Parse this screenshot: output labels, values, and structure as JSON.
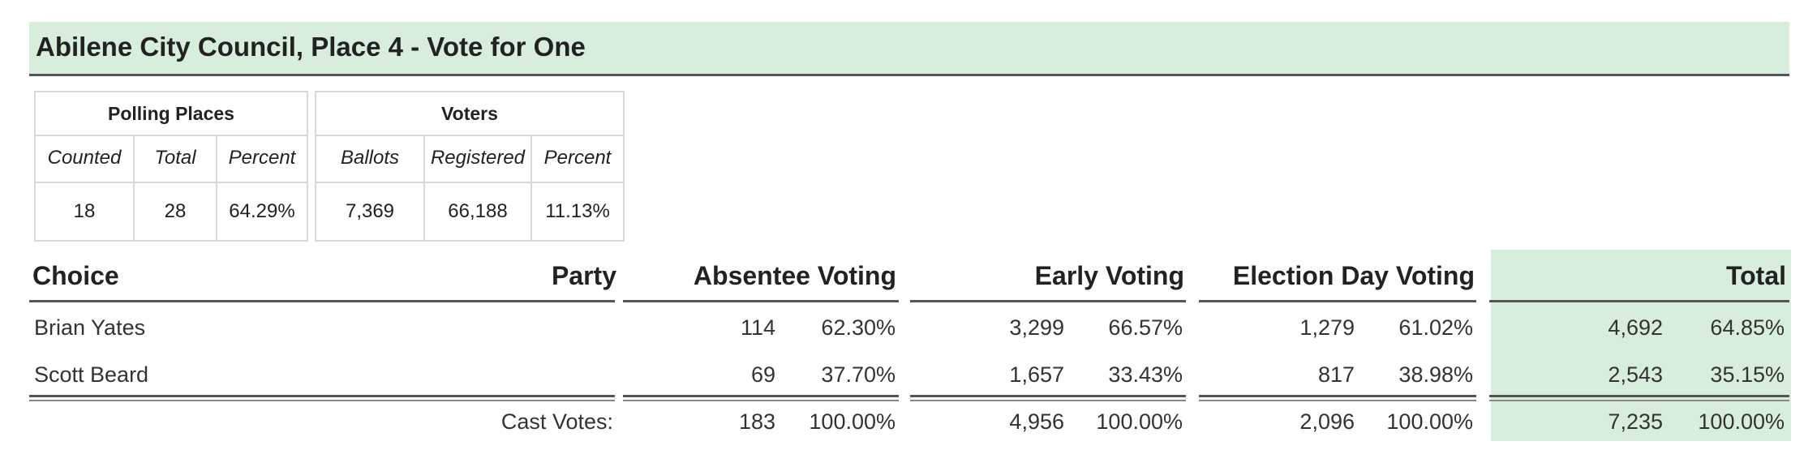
{
  "title": "Abilene City Council, Place 4 - Vote for One",
  "polling": {
    "heading": "Polling Places",
    "columns": [
      "Counted",
      "Total",
      "Percent"
    ],
    "values": [
      "18",
      "28",
      "64.29%"
    ]
  },
  "voters": {
    "heading": "Voters",
    "columns": [
      "Ballots",
      "Registered",
      "Percent"
    ],
    "values": [
      "7,369",
      "66,188",
      "11.13%"
    ]
  },
  "results": {
    "headers": {
      "choice": "Choice",
      "party": "Party",
      "absentee": "Absentee Voting",
      "early": "Early Voting",
      "election_day": "Election Day Voting",
      "total": "Total"
    },
    "rows": [
      {
        "choice": "Brian Yates",
        "party": "",
        "absentee": [
          "114",
          "62.30%"
        ],
        "early": [
          "3,299",
          "66.57%"
        ],
        "election_day": [
          "1,279",
          "61.02%"
        ],
        "total": [
          "4,692",
          "64.85%"
        ]
      },
      {
        "choice": "Scott Beard",
        "party": "",
        "absentee": [
          "69",
          "37.70%"
        ],
        "early": [
          "1,657",
          "33.43%"
        ],
        "election_day": [
          "817",
          "38.98%"
        ],
        "total": [
          "2,543",
          "35.15%"
        ]
      }
    ],
    "cast": {
      "label": "Cast Votes:",
      "absentee": [
        "183",
        "100.00%"
      ],
      "early": [
        "4,956",
        "100.00%"
      ],
      "election_day": [
        "2,096",
        "100.00%"
      ],
      "total": [
        "7,235",
        "100.00%"
      ]
    }
  },
  "colors": {
    "highlight": "#d7eedc",
    "rule": "#555555",
    "border": "#d8d8d8"
  }
}
